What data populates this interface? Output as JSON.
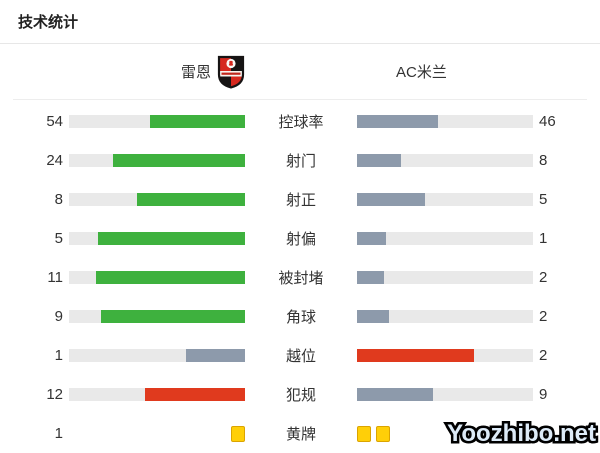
{
  "page": {
    "title": "技术统计",
    "watermark": "Yoozhibo.net"
  },
  "header": {
    "home_team": "雷恩",
    "away_team": "AC米兰",
    "home_crest": "stade-rennais-shield"
  },
  "colors": {
    "home_bar_green": "#3eb13e",
    "away_bar_gray": "#8d9aab",
    "bad_stat_red": "#e03a1e",
    "bar_track": "#e9e9e9",
    "yellow_card": "#ffcf08"
  },
  "chart_data": {
    "type": "bar",
    "title": "技术统计",
    "categories": [
      "控球率",
      "射门",
      "射正",
      "射偏",
      "被封堵",
      "角球",
      "越位",
      "犯规",
      "黄牌"
    ],
    "series": [
      {
        "name": "雷恩",
        "values": [
          54,
          24,
          8,
          5,
          11,
          9,
          1,
          12,
          1
        ]
      },
      {
        "name": "AC米兰",
        "values": [
          46,
          8,
          5,
          1,
          2,
          2,
          2,
          9,
          2
        ]
      }
    ],
    "layout": "mirrored horizontal bars; fills grow outward from center label column; each side normalized to row total; yellow cards drawn as card icons",
    "legend_position": "top team header"
  },
  "stats": {
    "rows": [
      {
        "label": "控球率",
        "left": "54",
        "right": "46",
        "left_pct": 54,
        "right_pct": 46,
        "left_color": "#3eb13e",
        "right_color": "#8d9aab"
      },
      {
        "label": "射门",
        "left": "24",
        "right": "8",
        "left_pct": 75,
        "right_pct": 25,
        "left_color": "#3eb13e",
        "right_color": "#8d9aab"
      },
      {
        "label": "射正",
        "left": "8",
        "right": "5",
        "left_pct": 61.5,
        "right_pct": 38.5,
        "left_color": "#3eb13e",
        "right_color": "#8d9aab"
      },
      {
        "label": "射偏",
        "left": "5",
        "right": "1",
        "left_pct": 83.3,
        "right_pct": 16.7,
        "left_color": "#3eb13e",
        "right_color": "#8d9aab"
      },
      {
        "label": "被封堵",
        "left": "11",
        "right": "2",
        "left_pct": 84.6,
        "right_pct": 15.4,
        "left_color": "#3eb13e",
        "right_color": "#8d9aab"
      },
      {
        "label": "角球",
        "left": "9",
        "right": "2",
        "left_pct": 81.8,
        "right_pct": 18.2,
        "left_color": "#3eb13e",
        "right_color": "#8d9aab"
      },
      {
        "label": "越位",
        "left": "1",
        "right": "2",
        "left_pct": 33.3,
        "right_pct": 66.7,
        "left_color": "#8d9aab",
        "right_color": "#e03a1e"
      },
      {
        "label": "犯规",
        "left": "12",
        "right": "9",
        "left_pct": 57.1,
        "right_pct": 42.9,
        "left_color": "#e03a1e",
        "right_color": "#8d9aab"
      },
      {
        "label": "黄牌",
        "left": "1",
        "right": "",
        "left_cards": 1,
        "right_cards": 2
      }
    ]
  }
}
